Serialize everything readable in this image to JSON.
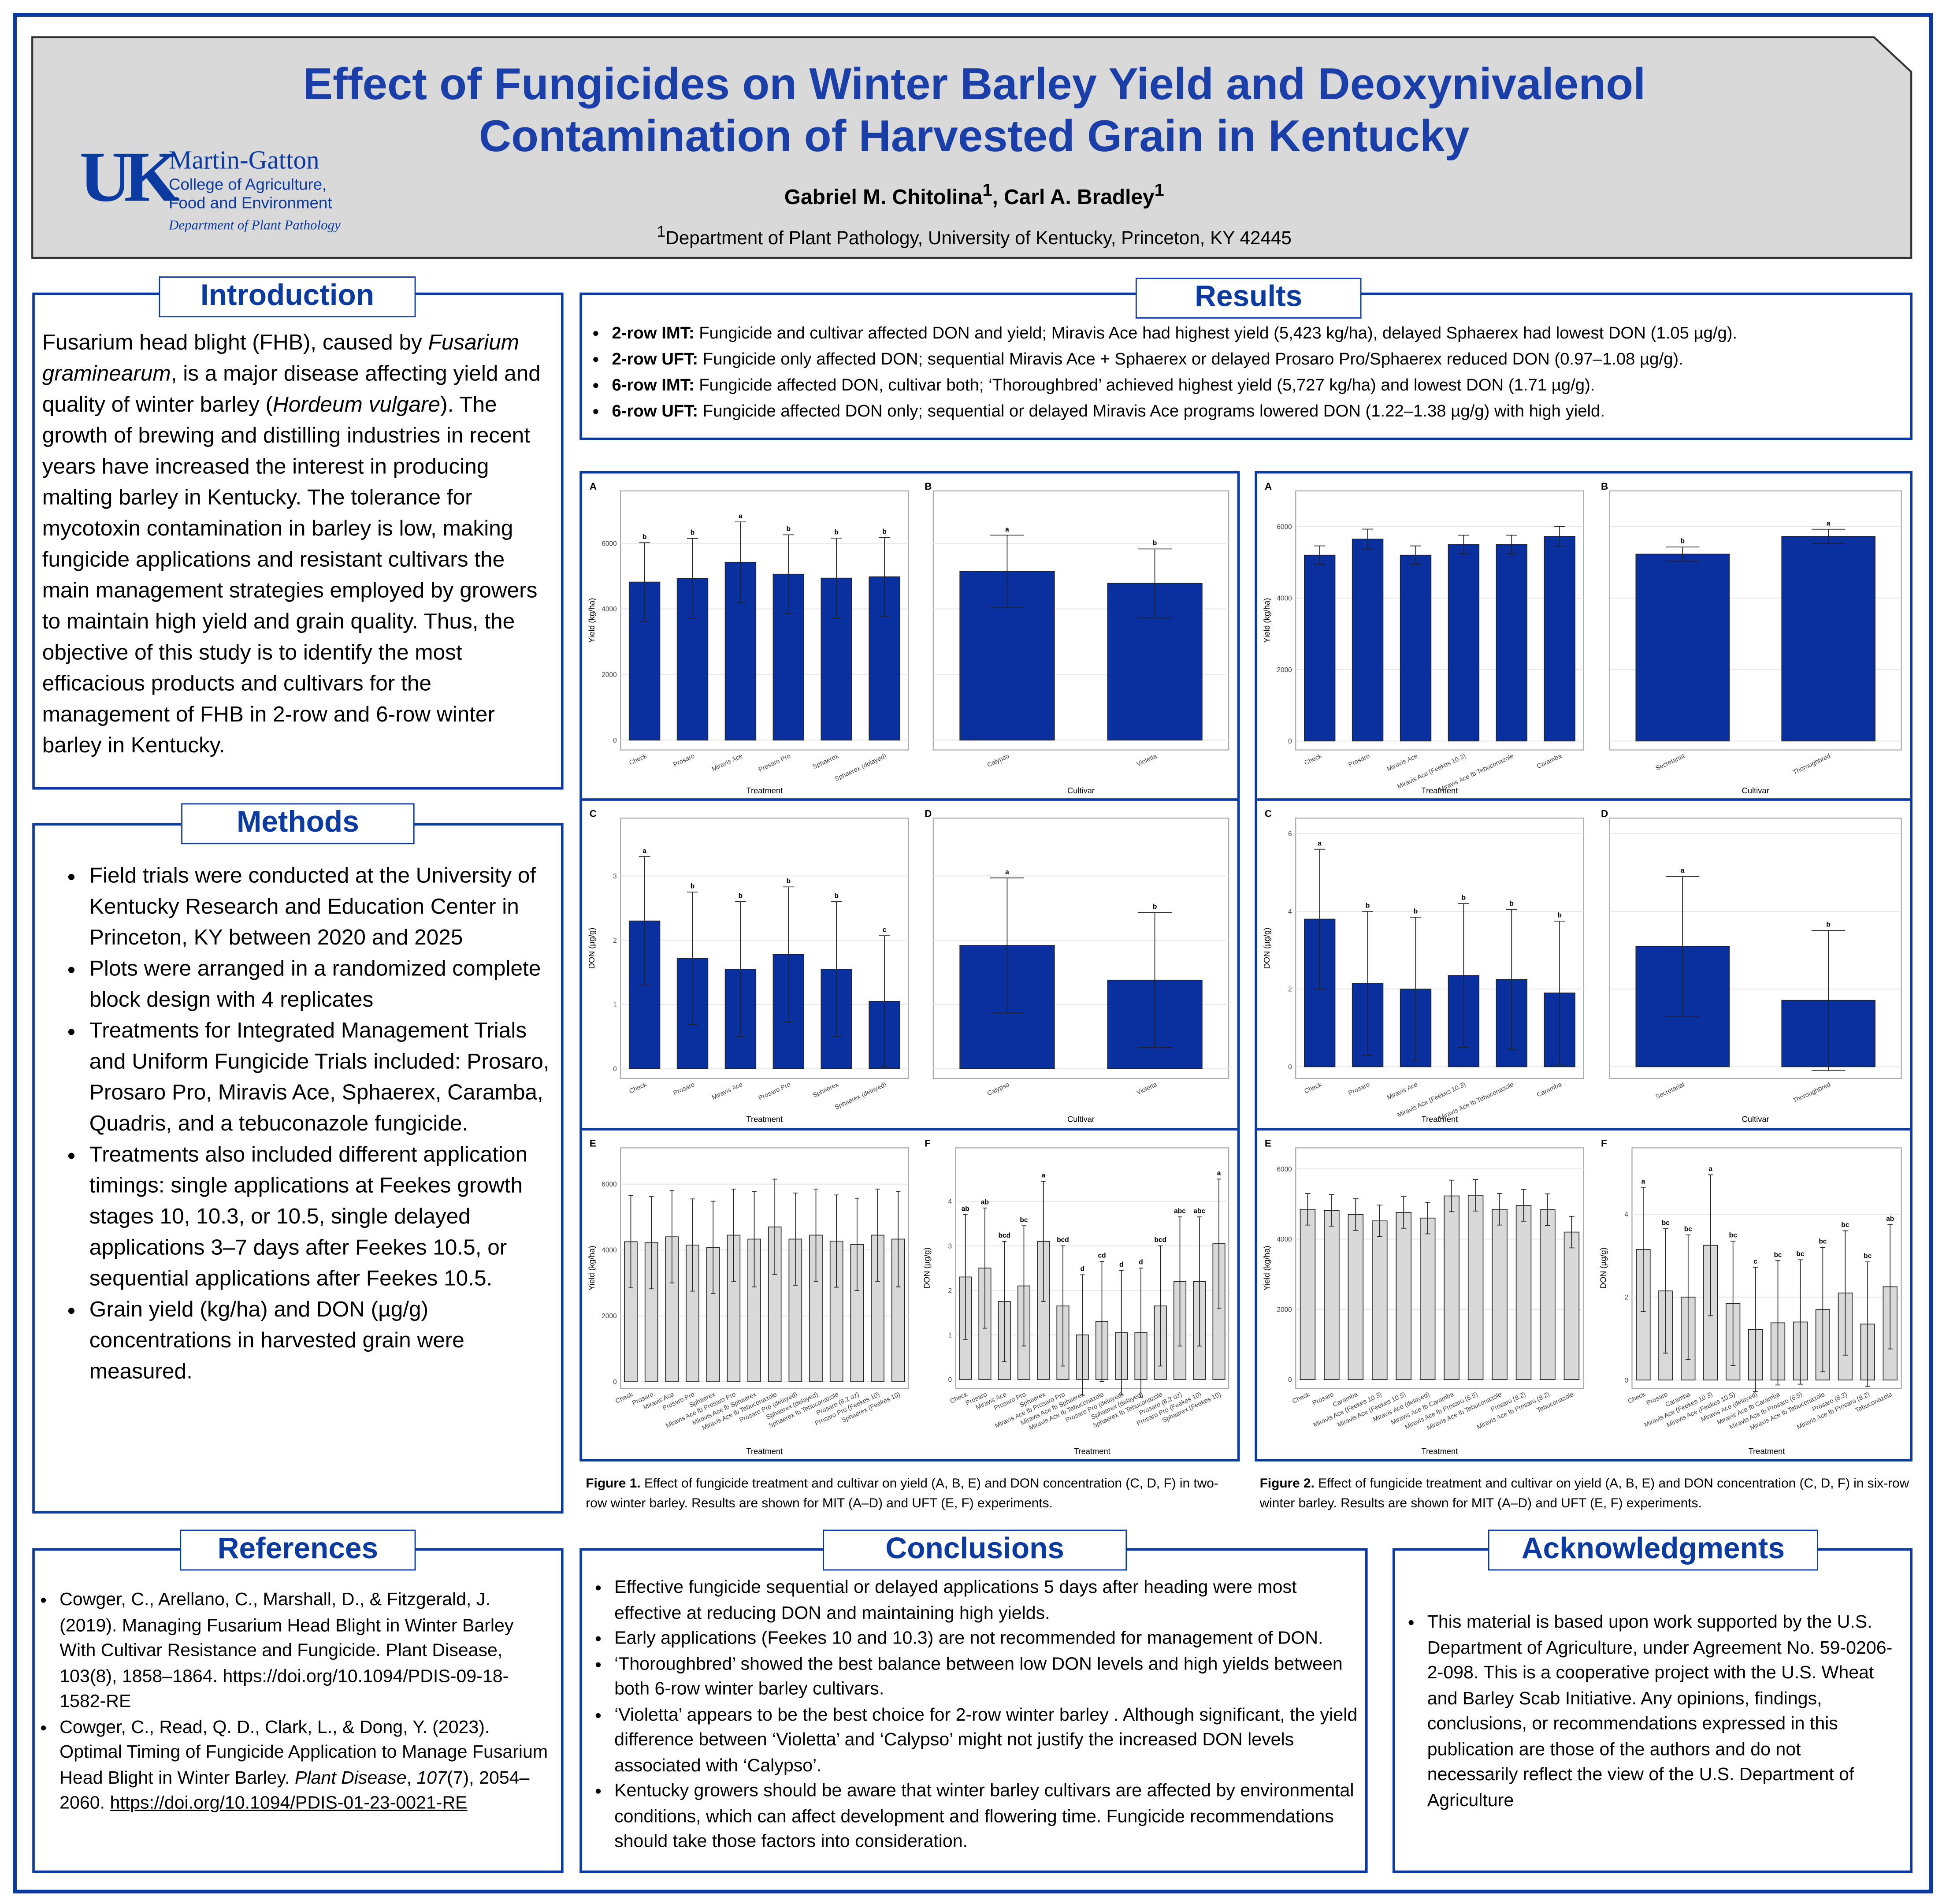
{
  "header": {
    "title_lines": [
      "Effect of Fungicides on Winter Barley Yield and Deoxynivalenol",
      "Contamination of Harvested Grain in Kentucky"
    ],
    "authors": [
      {
        "name": "Gabriel M. Chitolina",
        "mark": "1"
      },
      {
        "name": "Carl A. Bradley",
        "mark": "1"
      }
    ],
    "affiliation": {
      "mark": "1",
      "text": "Department of Plant Pathology, University of Kentucky, Princeton, KY 42445"
    }
  },
  "logo": {
    "mark": "UK",
    "lines": [
      "Martin-Gatton",
      "College of Agriculture,",
      "Food and Environment"
    ],
    "department": "Department of Plant Pathology"
  },
  "introduction": {
    "heading": "Introduction",
    "runs": [
      {
        "text": "Fusarium head blight (FHB), caused by "
      },
      {
        "text": "Fusarium graminearum",
        "italic": true
      },
      {
        "text": ", is a major disease affecting yield and quality of winter barley ("
      },
      {
        "text": "Hordeum vulgare",
        "italic": true
      },
      {
        "text": "). The growth of brewing and distilling industries in recent years have increased the interest in producing malting barley in Kentucky. The tolerance for mycotoxin contamination in barley is low, making fungicide applications and resistant cultivars the main management strategies employed by growers to maintain high yield and grain quality. Thus, the objective of this study is to identify the most efficacious products and cultivars for the management of FHB in 2-row and 6-row winter barley in Kentucky."
      }
    ]
  },
  "methods": {
    "heading": "Methods",
    "items": [
      "Field trials were conducted at the University of Kentucky  Research and Education Center in Princeton, KY between 2020 and 2025",
      "Plots were arranged in a randomized complete block design with 4 replicates",
      "Treatments for Integrated Management Trials and Uniform Fungicide Trials included: Prosaro, Prosaro Pro, Miravis Ace, Sphaerex, Caramba, Quadris, and a tebuconazole fungicide.",
      "Treatments also included different application timings: single applications at Feekes growth stages 10, 10.3, or 10.5, single delayed applications 3–7 days after Feekes 10.5, or sequential applications after Feekes 10.5.",
      "Grain yield (kg/ha) and DON (µg/g) concentrations in harvested grain were measured."
    ]
  },
  "results": {
    "heading": "Results",
    "items": [
      {
        "runs": [
          {
            "text": "2-row IMT:",
            "bold": true
          },
          {
            "text": " Fungicide and cultivar affected DON and yield; Miravis Ace had highest yield (5,423 kg/ha), delayed Sphaerex had lowest DON (1.05 µg/g)."
          }
        ]
      },
      {
        "runs": [
          {
            "text": "2-row UFT:",
            "bold": true
          },
          {
            "text": " Fungicide only affected DON; sequential Miravis Ace + Sphaerex or delayed Prosaro Pro/Sphaerex reduced DON (0.97–1.08 µg/g)."
          }
        ]
      },
      {
        "runs": [
          {
            "text": "6-row IMT:",
            "bold": true
          },
          {
            "text": " Fungicide affected DON, cultivar both; ‘Thoroughbred’ achieved highest yield (5,727 kg/ha) and lowest DON (1.71 µg/g)."
          }
        ]
      },
      {
        "runs": [
          {
            "text": "6-row UFT:",
            "bold": true
          },
          {
            "text": " Fungicide affected DON only; sequential or delayed Miravis Ace programs lowered DON (1.22–1.38 µg/g) with high yield."
          }
        ]
      }
    ]
  },
  "figures": [
    {
      "runs": [
        {
          "text": "Figure 1.",
          "bold": true
        },
        {
          "text": " Effect of fungicide treatment and cultivar on yield (A, B, E) and DON concentration (C, D, F) in two-row winter barley. Results are shown for MIT (A–D) and UFT (E, F) experiments."
        }
      ]
    },
    {
      "runs": [
        {
          "text": "Figure 2.",
          "bold": true
        },
        {
          "text": " Effect of fungicide treatment and cultivar on yield (A, B, E) and DON concentration (C, D, F) in six-row winter barley. Results are shown for MIT (A–D) and UFT (E, F) experiments."
        }
      ]
    }
  ],
  "references": {
    "heading": "References",
    "items": [
      {
        "runs": [
          {
            "text": "Cowger, C., Arellano, C., Marshall, D., & Fitzgerald, J. (2019). Managing Fusarium Head Blight in Winter Barley With Cultivar Resistance and Fungicide. Plant Disease, 103(8), 1858–1864. https://doi.org/10.1094/PDIS-09-18-1582-RE"
          }
        ]
      },
      {
        "runs": [
          {
            "text": "Cowger, C., Read, Q. D., Clark, L., & Dong, Y. (2023). Optimal Timing of Fungicide Application to Manage Fusarium Head Blight in Winter Barley. "
          },
          {
            "text": "Plant Disease",
            "italic": true
          },
          {
            "text": ", "
          },
          {
            "text": "107",
            "italic": true
          },
          {
            "text": "(7), 2054–2060. "
          },
          {
            "text": "https://doi.org/10.1094/PDIS-01-23-0021-RE",
            "underline": true
          }
        ]
      }
    ]
  },
  "conclusions": {
    "heading": "Conclusions",
    "items": [
      "Effective fungicide sequential or delayed applications 5 days after heading were most effective at reducing DON and maintaining high yields.",
      "Early applications (Feekes 10 and 10.3) are not recommended for management of DON.",
      "‘Thoroughbred’ showed the best balance between low DON levels and high yields between both 6-row winter barley cultivars.",
      "‘Violetta’ appears to be the best choice for 2-row winter barley . Although significant, the yield difference between ‘Violetta’ and ‘Calypso’ might not justify the increased DON levels associated with ‘Calypso’.",
      "Kentucky growers should be aware that winter barley cultivars are affected by environmental conditions, which can affect development and flowering time. Fungicide recommendations should take those factors into consideration."
    ]
  },
  "acknowledgments": {
    "heading": "Acknowledgments",
    "items": [
      "This material is based upon work supported by the U.S. Department of Agriculture, under Agreement No. 59-0206-2-098. This is a cooperative project with the U.S. Wheat and Barley Scab Initiative. Any opinions, findings, conclusions, or recommendations expressed in this publication are those of the authors and do not necessarily reflect the view of the U.S. Department of Agriculture"
    ]
  },
  "chart_data": [
    {
      "type": "bar",
      "panel": "A",
      "ylabel": "Yield (kg/ha)",
      "xlabel": "Treatment",
      "color": "#0a2f9e",
      "categories": [
        "Check",
        "Prosaro",
        "Miravis Ace",
        "Prosaro Pro",
        "Sphaerex",
        "Sphaerex (delayed)"
      ],
      "values": [
        4820,
        4930,
        5423,
        5060,
        4940,
        4980
      ],
      "errors": [
        1200,
        1220,
        1230,
        1200,
        1220,
        1200
      ],
      "letters": [
        "b",
        "b",
        "a",
        "b",
        "b",
        "b"
      ],
      "ylim": [
        -300,
        7600
      ],
      "yticks": [
        0,
        2000,
        4000,
        6000
      ],
      "grid": true
    },
    {
      "type": "bar",
      "panel": "B",
      "xlabel": "Cultivar",
      "color": "#0a2f9e",
      "categories": [
        "Calypso",
        "Violetta"
      ],
      "values": [
        5150,
        4780
      ],
      "errors": [
        1100,
        1050
      ],
      "letters": [
        "a",
        "b"
      ],
      "ylim": [
        -300,
        7600
      ],
      "yticks": [
        0,
        2000,
        4000,
        6000
      ],
      "grid": true
    },
    {
      "type": "bar",
      "panel": "C",
      "ylabel": "DON (µg/g)",
      "xlabel": "Treatment",
      "color": "#0a2f9e",
      "categories": [
        "Check",
        "Prosaro",
        "Miravis Ace",
        "Prosaro Pro",
        "Sphaerex",
        "Sphaerex (delayed)"
      ],
      "values": [
        2.3,
        1.72,
        1.55,
        1.78,
        1.55,
        1.05
      ],
      "errors": [
        1.0,
        1.03,
        1.05,
        1.05,
        1.05,
        1.02
      ],
      "letters": [
        "a",
        "b",
        "b",
        "b",
        "b",
        "c"
      ],
      "ylim": [
        -0.15,
        3.9
      ],
      "yticks": [
        0,
        1,
        2,
        3
      ],
      "grid": true
    },
    {
      "type": "bar",
      "panel": "D",
      "xlabel": "Cultivar",
      "color": "#0a2f9e",
      "categories": [
        "Calypso",
        "Violetta"
      ],
      "values": [
        1.92,
        1.38
      ],
      "errors": [
        1.05,
        1.05
      ],
      "letters": [
        "a",
        "b"
      ],
      "ylim": [
        -0.15,
        3.9
      ],
      "yticks": [
        0,
        1,
        2,
        3
      ],
      "grid": true
    },
    {
      "type": "bar",
      "panel": "E",
      "ylabel": "Yield (kg/ha)",
      "xlabel": "Treatment",
      "color": "#d9d9d9",
      "categories": [
        "Check",
        "Prosaro",
        "Miravis Ace",
        "Prosaro Pro",
        "Sphaerex",
        "Miravis Ace fb Prosaro Pro",
        "Miravis Ace fb Sphaerex",
        "Miravis Ace fb Tebuconazole",
        "Prosaro Pro (delayed)",
        "Sphaerex (delayed)",
        "Sphaerex fb Tebuconazole",
        "Prosaro (8.2 oz)",
        "Prosaro Pro (Feekes 10)",
        "Sphaerex (Feekes 10)"
      ],
      "values": [
        4250,
        4220,
        4400,
        4150,
        4080,
        4450,
        4330,
        4700,
        4330,
        4450,
        4270,
        4170,
        4450,
        4330
      ],
      "errors": [
        1400,
        1400,
        1400,
        1400,
        1400,
        1400,
        1450,
        1450,
        1400,
        1400,
        1400,
        1400,
        1400,
        1450
      ],
      "ylim": [
        -200,
        7100
      ],
      "yticks": [
        0,
        2000,
        4000,
        6000
      ],
      "grid": true
    },
    {
      "type": "bar",
      "panel": "F",
      "ylabel": "DON (µg/g)",
      "xlabel": "Treatment",
      "color": "#d9d9d9",
      "categories": [
        "Check",
        "Prosaro",
        "Miravis Ace",
        "Prosaro Pro",
        "Sphaerex",
        "Miravis Ace fb Prosaro Pro",
        "Miravis Ace fb Sphaerex",
        "Miravis Ace fb Tebuconazole",
        "Prosaro Pro (delayed)",
        "Sphaerex (delayed)",
        "Sphaerex fb Tebuconazole",
        "Prosaro (8.2 oz)",
        "Prosaro Pro (Feekes 10)",
        "Sphaerex (Feekes 10)"
      ],
      "values": [
        2.3,
        2.5,
        1.75,
        2.1,
        3.1,
        1.65,
        1.0,
        1.3,
        1.05,
        1.05,
        1.65,
        2.2,
        2.2,
        3.05
      ],
      "errors": [
        1.4,
        1.35,
        1.35,
        1.35,
        1.35,
        1.35,
        1.35,
        1.35,
        1.4,
        1.45,
        1.35,
        1.45,
        1.45,
        1.45
      ],
      "letters": [
        "ab",
        "ab",
        "bcd",
        "bc",
        "a",
        "bcd",
        "d",
        "cd",
        "d",
        "d",
        "bcd",
        "abc",
        "abc",
        "a"
      ],
      "ylim": [
        -0.2,
        5.2
      ],
      "yticks": [
        0,
        1,
        2,
        3,
        4
      ],
      "grid": true
    },
    {
      "type": "bar",
      "panel": "A",
      "ylabel": "Yield (kg/ha)",
      "xlabel": "Treatment",
      "color": "#0a2f9e",
      "categories": [
        "Check",
        "Prosaro",
        "Miravis Ace",
        "Miravis Ace (Feekes 10.3)",
        "Miravis Ace fb Tebuconazole",
        "Caramba"
      ],
      "values": [
        5200,
        5650,
        5200,
        5500,
        5500,
        5727
      ],
      "errors": [
        260,
        280,
        260,
        260,
        260,
        280
      ],
      "ylim": [
        -250,
        7000
      ],
      "yticks": [
        0,
        2000,
        4000,
        6000
      ],
      "grid": true
    },
    {
      "type": "bar",
      "panel": "B",
      "xlabel": "Cultivar",
      "color": "#0a2f9e",
      "categories": [
        "Secretariat",
        "Thoroughbred"
      ],
      "values": [
        5230,
        5727
      ],
      "errors": [
        200,
        200
      ],
      "letters": [
        "b",
        "a"
      ],
      "ylim": [
        -250,
        7000
      ],
      "yticks": [
        0,
        2000,
        4000,
        6000
      ],
      "grid": true
    },
    {
      "type": "bar",
      "panel": "C",
      "ylabel": "DON (µg/g)",
      "xlabel": "Treatment",
      "color": "#0a2f9e",
      "categories": [
        "Check",
        "Prosaro",
        "Miravis Ace",
        "Miravis Ace (Feekes 10.3)",
        "Miravis Ace fb Tebuconazole",
        "Caramba"
      ],
      "values": [
        3.8,
        2.15,
        2.0,
        2.35,
        2.25,
        1.9
      ],
      "errors": [
        1.8,
        1.85,
        1.85,
        1.85,
        1.8,
        1.85
      ],
      "letters": [
        "a",
        "b",
        "b",
        "b",
        "b",
        "b"
      ],
      "ylim": [
        -0.3,
        6.4
      ],
      "yticks": [
        0,
        2,
        4,
        6
      ],
      "grid": true
    },
    {
      "type": "bar",
      "panel": "D",
      "xlabel": "Cultivar",
      "color": "#0a2f9e",
      "categories": [
        "Secretariat",
        "Thoroughbred"
      ],
      "values": [
        3.1,
        1.71
      ],
      "errors": [
        1.8,
        1.8
      ],
      "letters": [
        "a",
        "b"
      ],
      "ylim": [
        -0.3,
        6.4
      ],
      "yticks": [
        0,
        2,
        4,
        6
      ],
      "grid": true
    },
    {
      "type": "bar",
      "panel": "E",
      "ylabel": "Yield (kg/ha)",
      "xlabel": "Treatment",
      "color": "#d9d9d9",
      "categories": [
        "Check",
        "Prosaro",
        "Caramba",
        "Miravis Ace (Feekes 10.3)",
        "Miravis Ace (Feekes 10.5)",
        "Miravis Ace (delayed)",
        "Miravis Ace fb Caramba",
        "Miravis Ace fb Prosaro (6.5)",
        "Miravis Ace fb Tebuconazole",
        "Prosaro (8.2)",
        "Miravis Ace fb Prosaro (8.2)",
        "Tebuconazole"
      ],
      "values": [
        4850,
        4820,
        4700,
        4520,
        4760,
        4600,
        5230,
        5250,
        4850,
        4960,
        4840,
        4200
      ],
      "errors": [
        450,
        450,
        450,
        450,
        450,
        450,
        450,
        450,
        450,
        450,
        450,
        450
      ],
      "ylim": [
        -250,
        6600
      ],
      "yticks": [
        0,
        2000,
        4000,
        6000
      ],
      "grid": true
    },
    {
      "type": "bar",
      "panel": "F",
      "ylabel": "DON (µg/g)",
      "xlabel": "Treatment",
      "color": "#d9d9d9",
      "categories": [
        "Check",
        "Prosaro",
        "Caramba",
        "Miravis Ace (Feekes 10.3)",
        "Miravis Ace (Feekes 10.5)",
        "Miravis Ace (delayed)",
        "Miravis Ace fb Caramba",
        "Miravis Ace fb Prosaro (6.5)",
        "Miravis Ace fb Tebuconazole",
        "Prosaro (8.2)",
        "Miravis Ace fb Prosaro (8.2)",
        "Tebuconazole"
      ],
      "values": [
        3.15,
        2.15,
        2.0,
        3.25,
        1.85,
        1.22,
        1.38,
        1.4,
        1.7,
        2.1,
        1.35,
        2.25
      ],
      "errors": [
        1.5,
        1.5,
        1.5,
        1.7,
        1.5,
        1.5,
        1.5,
        1.5,
        1.5,
        1.5,
        1.5,
        1.5
      ],
      "letters": [
        "a",
        "bc",
        "bc",
        "a",
        "bc",
        "c",
        "bc",
        "bc",
        "bc",
        "bc",
        "bc",
        "ab"
      ],
      "ylim": [
        -0.2,
        5.6
      ],
      "yticks": [
        0,
        2,
        4
      ],
      "grid": true
    }
  ]
}
